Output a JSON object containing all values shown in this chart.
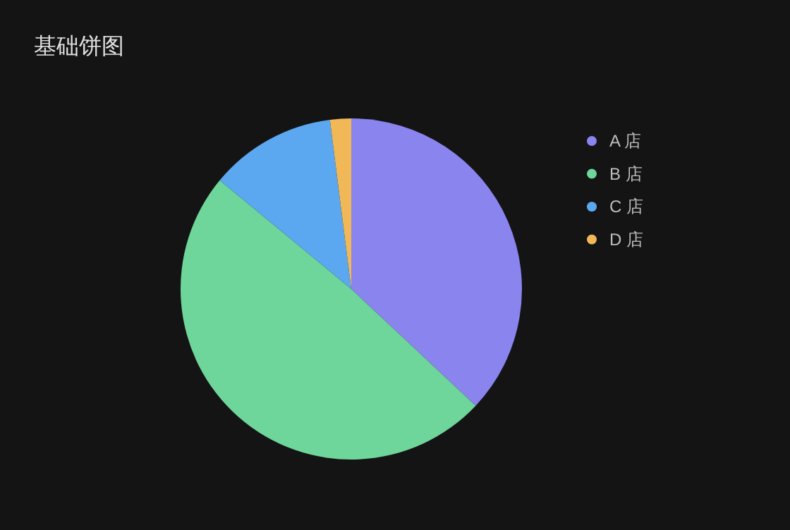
{
  "chart_data": {
    "type": "pie",
    "title": "基础饼图",
    "categories": [
      "A 店",
      "B 店",
      "C 店",
      "D 店"
    ],
    "values": [
      37,
      49,
      12,
      2
    ],
    "colors": [
      "#8a84ef",
      "#6ed59b",
      "#5ba8f0",
      "#f0b857"
    ],
    "legend": "right"
  }
}
